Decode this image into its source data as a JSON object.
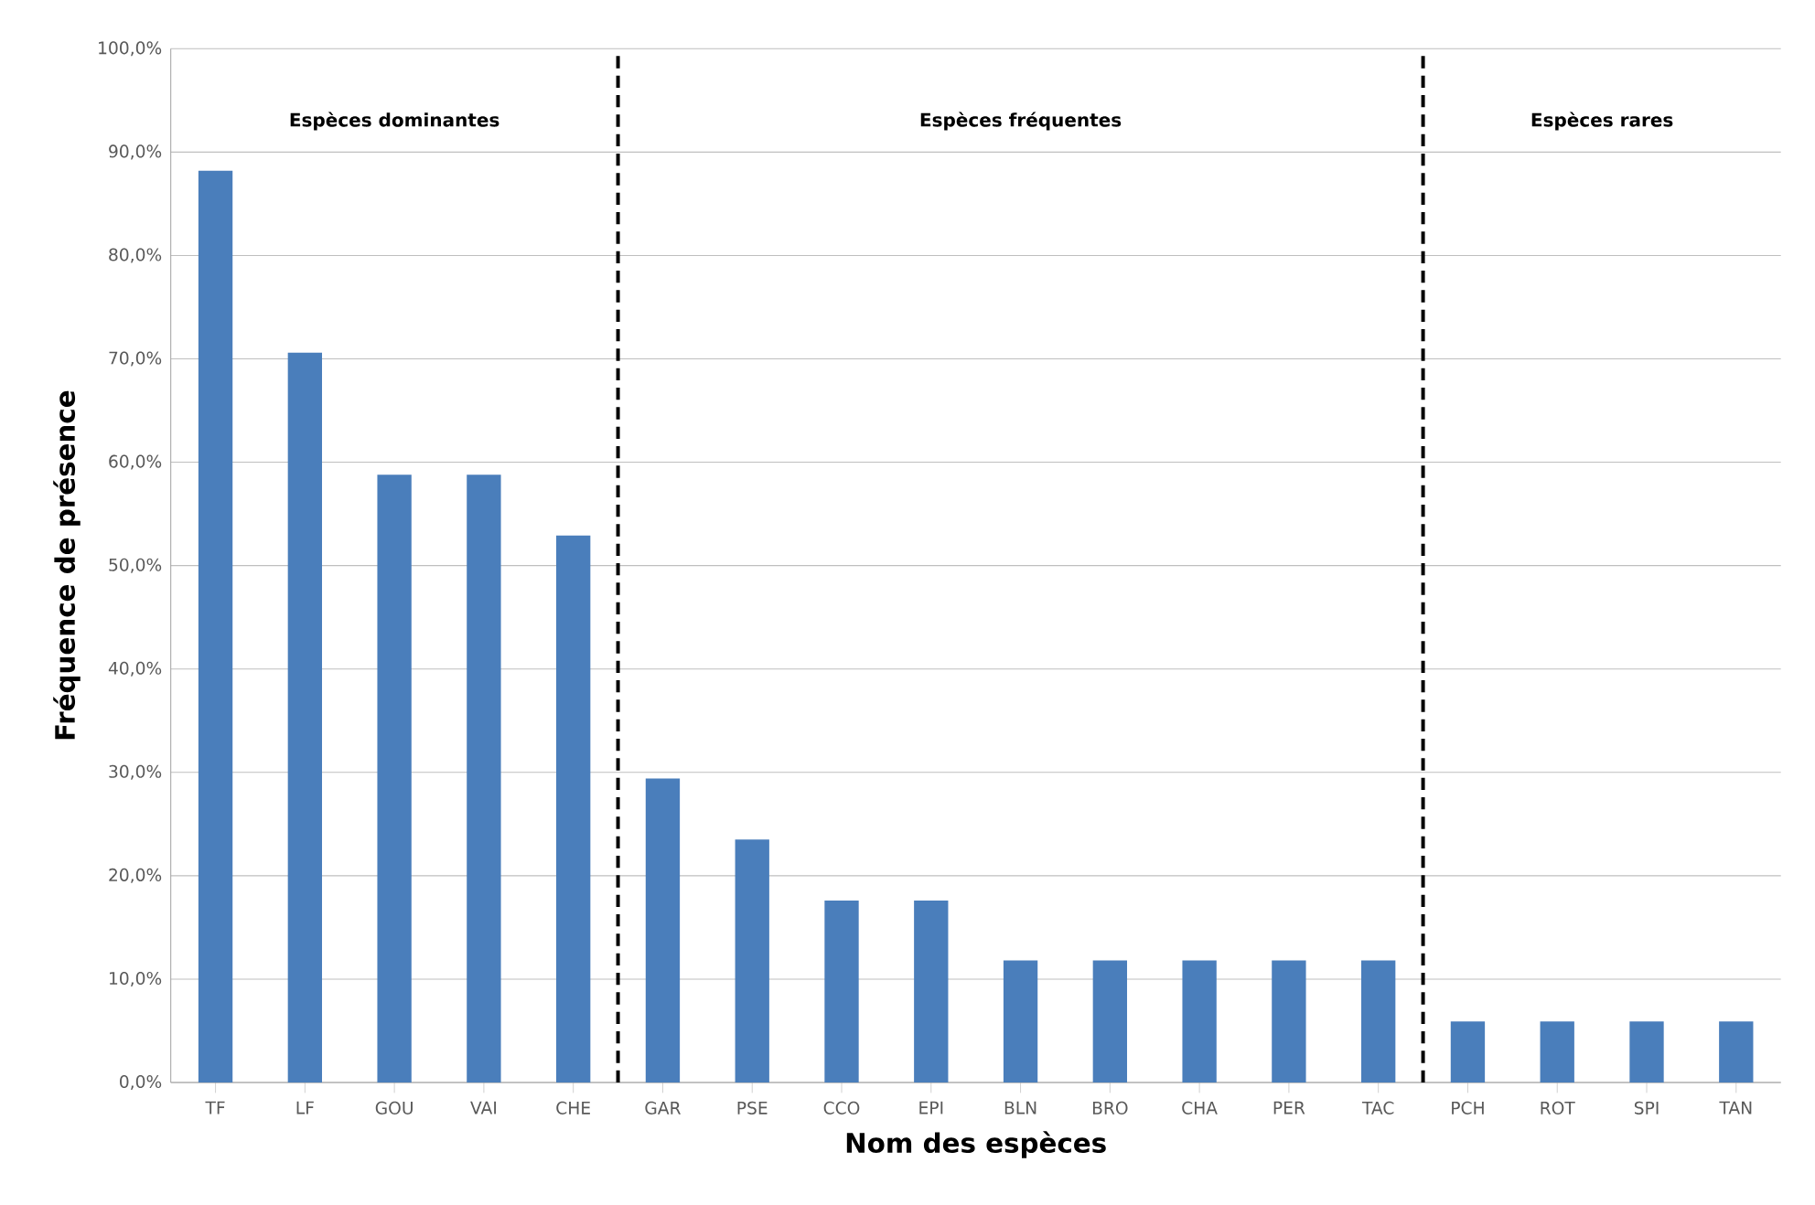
{
  "chart_data": {
    "type": "bar",
    "xlabel": "Nom des espèces",
    "ylabel": "Fréquence de présence",
    "categories": [
      "TF",
      "LF",
      "GOU",
      "VAI",
      "CHE",
      "GAR",
      "PSE",
      "CCO",
      "EPI",
      "BLN",
      "BRO",
      "CHA",
      "PER",
      "TAC",
      "PCH",
      "ROT",
      "SPI",
      "TAN"
    ],
    "values": [
      88.2,
      70.6,
      58.8,
      58.8,
      52.9,
      29.4,
      23.5,
      17.6,
      17.6,
      11.8,
      11.8,
      11.8,
      11.8,
      11.8,
      5.9,
      5.9,
      5.9,
      5.9
    ],
    "color": "#4a7ebb",
    "ylim": [
      0,
      100
    ],
    "yticks": [
      {
        "value": 0,
        "label": "0,0%"
      },
      {
        "value": 10,
        "label": "10,0%"
      },
      {
        "value": 20,
        "label": "20,0%"
      },
      {
        "value": 30,
        "label": "30,0%"
      },
      {
        "value": 40,
        "label": "40,0%"
      },
      {
        "value": 50,
        "label": "50,0%"
      },
      {
        "value": 60,
        "label": "60,0%"
      },
      {
        "value": 70,
        "label": "70,0%"
      },
      {
        "value": 80,
        "label": "80,0%"
      },
      {
        "value": 90,
        "label": "90,0%"
      },
      {
        "value": 100,
        "label": "100,0%"
      }
    ],
    "grid": "y",
    "annotations": [
      "Espèces dominantes",
      "Espèces fréquentes",
      "Espèces rares"
    ]
  }
}
